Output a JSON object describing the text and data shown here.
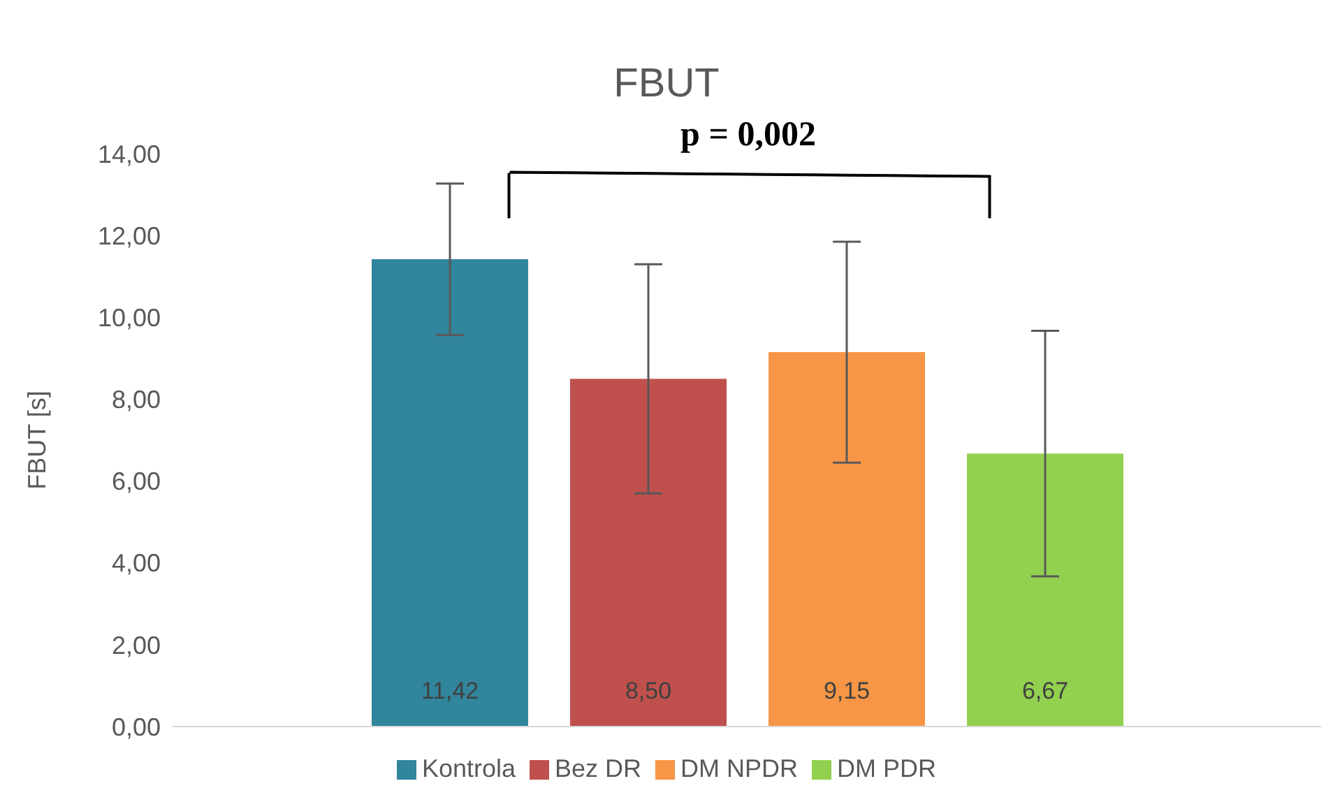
{
  "chart_data": {
    "type": "bar",
    "title": "FBUT",
    "ylabel": "FBUT [s]",
    "categories": [
      null
    ],
    "series": [
      {
        "name": "Kontrola",
        "color": "#31859c",
        "values": [
          11.42
        ],
        "errors": [
          1.85
        ],
        "value_labels": [
          "11,42"
        ]
      },
      {
        "name": "Bez DR",
        "color": "#c0504d",
        "values": [
          8.5
        ],
        "errors": [
          2.8
        ],
        "value_labels": [
          "8,50"
        ]
      },
      {
        "name": "DM NPDR",
        "color": "#f79646",
        "values": [
          9.15
        ],
        "errors": [
          2.7
        ],
        "value_labels": [
          "9,15"
        ]
      },
      {
        "name": "DM PDR",
        "color": "#92d050",
        "values": [
          6.67
        ],
        "errors": [
          3.0
        ],
        "value_labels": [
          "6,67"
        ]
      }
    ],
    "ylim": [
      0,
      14
    ],
    "yticks": [
      {
        "value": 0,
        "label": "0,00"
      },
      {
        "value": 2,
        "label": "2,00"
      },
      {
        "value": 4,
        "label": "4,00"
      },
      {
        "value": 6,
        "label": "6,00"
      },
      {
        "value": 8,
        "label": "8,00"
      },
      {
        "value": 10,
        "label": "10,00"
      },
      {
        "value": 12,
        "label": "12,00"
      },
      {
        "value": 14,
        "label": "14,00"
      }
    ],
    "annotations": [
      "p = 0,002"
    ],
    "grid": false,
    "legend": "bottom"
  }
}
